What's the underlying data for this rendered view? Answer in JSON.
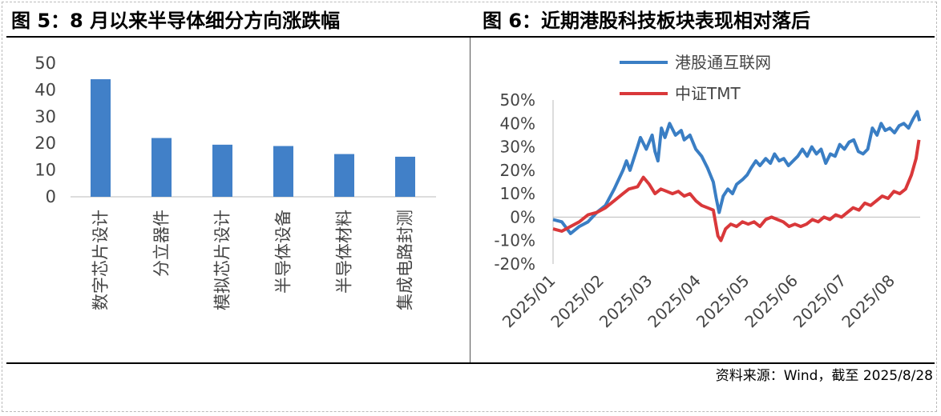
{
  "left_title": "图 5：8 月以来半导体细分方向涨跌幅",
  "right_title": "图 6：近期港股科技板块表现相对落后",
  "source": "资料来源：Wind，截至 2025/8/28",
  "colors": {
    "blue": "#3a7ec4",
    "bar": "#4180c8",
    "red": "#d9383a"
  },
  "chart_data": [
    {
      "type": "bar",
      "categories": [
        "数字芯片设计",
        "分立器件",
        "模拟芯片设计",
        "半导体设备",
        "半导体材料",
        "集成电路封测"
      ],
      "values": [
        44,
        22,
        19.5,
        19,
        16,
        15
      ],
      "ylim": [
        0,
        50
      ],
      "yticks": [
        "0",
        "10",
        "20",
        "30",
        "40",
        "50"
      ],
      "grid": false
    },
    {
      "type": "line",
      "x_ticks": [
        "2025/01",
        "2025/02",
        "2025/03",
        "2025/04",
        "2025/05",
        "2025/06",
        "2025/07",
        "2025/08"
      ],
      "ylim": [
        -20,
        50
      ],
      "yticks": [
        "-20%",
        "-10%",
        "0%",
        "10%",
        "20%",
        "30%",
        "40%",
        "50%"
      ],
      "legend_position": "top-left",
      "series": [
        {
          "name": "港股通互联网",
          "color": "#3a7ec4",
          "points": [
            [
              0,
              -1
            ],
            [
              1.5,
              -2
            ],
            [
              3,
              -7
            ],
            [
              4.5,
              -4
            ],
            [
              6,
              -2
            ],
            [
              7.5,
              2
            ],
            [
              9,
              5
            ],
            [
              10.5,
              12
            ],
            [
              12,
              20
            ],
            [
              12.6,
              24
            ],
            [
              13.2,
              20
            ],
            [
              14.5,
              30
            ],
            [
              15,
              34
            ],
            [
              16,
              29
            ],
            [
              17,
              35
            ],
            [
              17.5,
              28
            ],
            [
              18,
              24
            ],
            [
              18.6,
              38
            ],
            [
              19.2,
              34
            ],
            [
              20,
              40
            ],
            [
              21,
              35
            ],
            [
              22,
              37
            ],
            [
              22.5,
              33
            ],
            [
              23.5,
              35
            ],
            [
              24.5,
              29
            ],
            [
              25.5,
              26
            ],
            [
              26.5,
              21
            ],
            [
              27.5,
              15
            ],
            [
              28,
              8
            ],
            [
              28.5,
              2
            ],
            [
              29.2,
              9
            ],
            [
              30,
              12
            ],
            [
              30.8,
              10
            ],
            [
              31.5,
              14
            ],
            [
              32.5,
              16
            ],
            [
              33.3,
              18
            ],
            [
              34,
              21
            ],
            [
              34.8,
              24
            ],
            [
              35.5,
              22
            ],
            [
              36.5,
              25
            ],
            [
              37.3,
              23
            ],
            [
              38,
              27
            ],
            [
              38.8,
              24
            ],
            [
              39.6,
              25
            ],
            [
              40.4,
              22
            ],
            [
              41.2,
              24
            ],
            [
              42,
              26
            ],
            [
              42.8,
              29
            ],
            [
              43.6,
              26
            ],
            [
              44.4,
              30
            ],
            [
              45.2,
              27
            ],
            [
              46,
              29
            ],
            [
              46.8,
              23
            ],
            [
              47.6,
              27
            ],
            [
              48.4,
              26
            ],
            [
              49.2,
              31
            ],
            [
              50,
              29
            ],
            [
              50.8,
              32
            ],
            [
              51.6,
              33
            ],
            [
              52.4,
              28
            ],
            [
              53.2,
              27
            ],
            [
              54,
              29
            ],
            [
              54.8,
              38
            ],
            [
              55.6,
              35
            ],
            [
              56.3,
              40
            ],
            [
              57,
              37
            ],
            [
              57.8,
              38
            ],
            [
              58.6,
              36
            ],
            [
              59.4,
              39
            ],
            [
              60.2,
              40
            ],
            [
              61,
              38
            ],
            [
              61.8,
              42
            ],
            [
              62.5,
              45
            ],
            [
              62.9,
              41
            ]
          ]
        },
        {
          "name": "中证TMT",
          "color": "#d9383a",
          "points": [
            [
              0,
              -5
            ],
            [
              1.5,
              -6
            ],
            [
              3,
              -4
            ],
            [
              4.5,
              -2
            ],
            [
              6,
              1
            ],
            [
              7.5,
              2
            ],
            [
              9,
              4
            ],
            [
              10.5,
              7
            ],
            [
              12,
              10
            ],
            [
              13,
              12
            ],
            [
              14.5,
              13
            ],
            [
              15.5,
              17
            ],
            [
              16.5,
              14
            ],
            [
              17.5,
              10
            ],
            [
              18.5,
              12
            ],
            [
              19.5,
              11
            ],
            [
              20.5,
              10
            ],
            [
              21.5,
              11
            ],
            [
              22.5,
              9
            ],
            [
              23.5,
              10
            ],
            [
              24.5,
              7
            ],
            [
              25.5,
              5
            ],
            [
              26.5,
              4
            ],
            [
              27.5,
              3
            ],
            [
              28.3,
              -8
            ],
            [
              28.8,
              -10
            ],
            [
              29.6,
              -5
            ],
            [
              30.5,
              -3
            ],
            [
              31.5,
              -4
            ],
            [
              32.5,
              -2
            ],
            [
              33.5,
              -3
            ],
            [
              34.5,
              -2
            ],
            [
              35.5,
              -4
            ],
            [
              36.5,
              -1
            ],
            [
              37.5,
              0
            ],
            [
              38.5,
              -1
            ],
            [
              39.5,
              -2
            ],
            [
              40.5,
              -4
            ],
            [
              41.5,
              -3
            ],
            [
              42.5,
              -4
            ],
            [
              43.5,
              -3
            ],
            [
              44.5,
              -1
            ],
            [
              45.5,
              -2
            ],
            [
              46.5,
              0
            ],
            [
              47.5,
              -1
            ],
            [
              48.5,
              1
            ],
            [
              49.5,
              0
            ],
            [
              50.5,
              2
            ],
            [
              51.5,
              4
            ],
            [
              52.5,
              3
            ],
            [
              53.5,
              6
            ],
            [
              54.5,
              5
            ],
            [
              55.5,
              7
            ],
            [
              56.5,
              9
            ],
            [
              57.5,
              8
            ],
            [
              58.5,
              11
            ],
            [
              59.5,
              10
            ],
            [
              60.5,
              12
            ],
            [
              61.5,
              18
            ],
            [
              62.3,
              25
            ],
            [
              62.8,
              33
            ]
          ]
        }
      ]
    }
  ]
}
